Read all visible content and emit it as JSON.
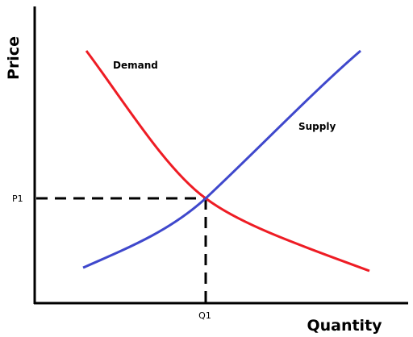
{
  "axes": {
    "y_label": "Price",
    "x_label": "Quantity"
  },
  "curves": [
    {
      "label": "Demand"
    },
    {
      "label": "Supply"
    }
  ],
  "equilibrium": {
    "price_label": "P1",
    "quantity_label": "Q1"
  }
}
